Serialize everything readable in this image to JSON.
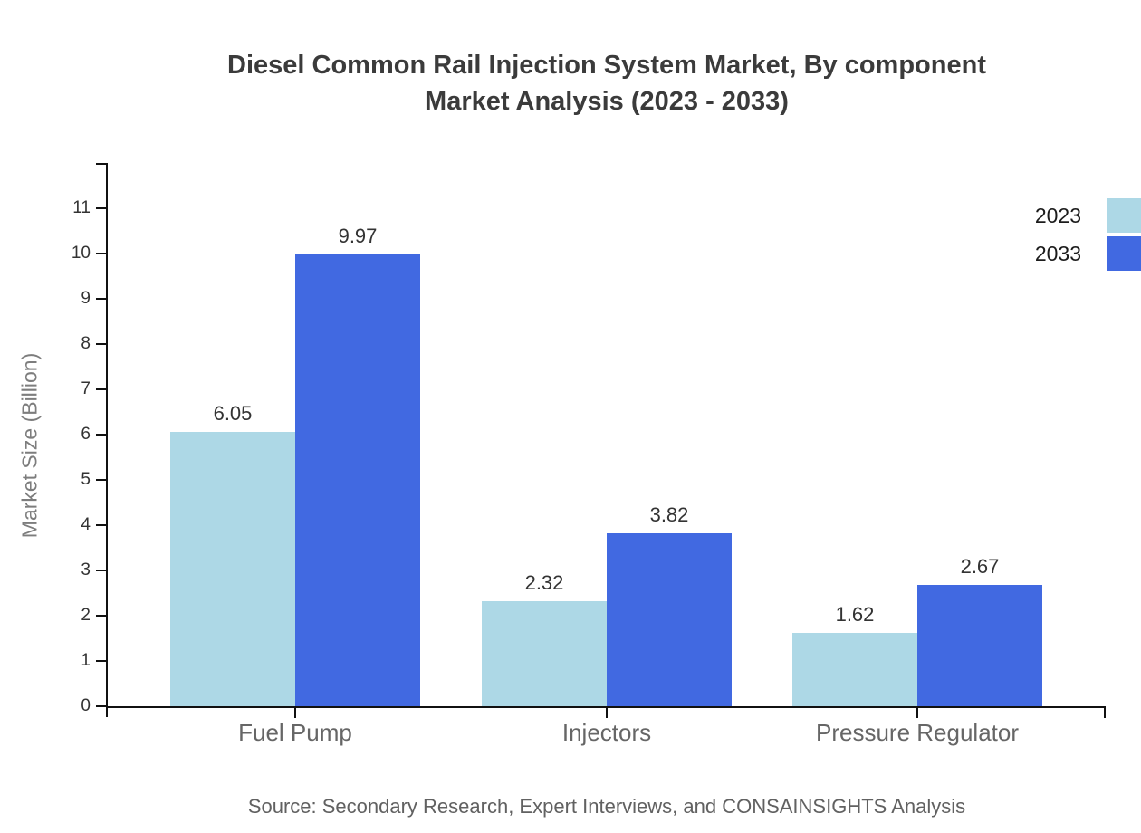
{
  "title": {
    "line1": "Diesel Common Rail Injection System Market, By component",
    "line2": "Market Analysis (2023 - 2033)"
  },
  "legend": [
    {
      "label": "2023",
      "color": "#add8e6"
    },
    {
      "label": "2033",
      "color": "#4169e1"
    }
  ],
  "y_axis": {
    "label": "Market Size (Billion)"
  },
  "source": "Source: Secondary Research, Expert Interviews, and CONSAINSIGHTS Analysis",
  "chart_data": {
    "type": "bar",
    "title": "Diesel Common Rail Injection System Market, By component Market Analysis (2023 - 2033)",
    "categories": [
      "Fuel Pump",
      "Injectors",
      "Pressure Regulator"
    ],
    "series": [
      {
        "name": "2023",
        "color": "#add8e6",
        "values": [
          6.05,
          2.32,
          1.62
        ]
      },
      {
        "name": "2033",
        "color": "#4169e1",
        "values": [
          9.97,
          3.82,
          2.67
        ]
      }
    ],
    "xlabel": "",
    "ylabel": "Market Size (Billion)",
    "ylim": [
      0,
      12
    ],
    "yticks": [
      0,
      1,
      2,
      3,
      4,
      5,
      6,
      7,
      8,
      9,
      10,
      11
    ],
    "grid": false,
    "value_labels": true,
    "legend_position": "top-right"
  }
}
